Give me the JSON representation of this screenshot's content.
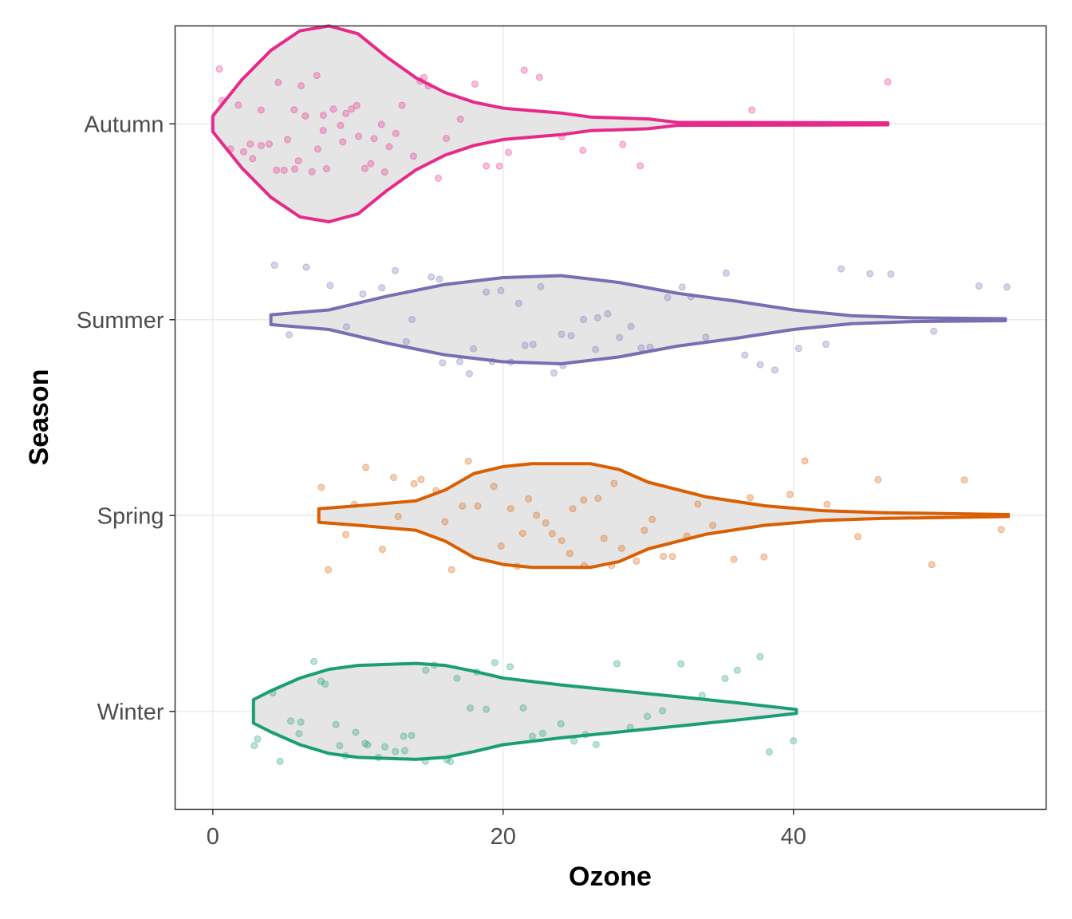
{
  "chart_data": {
    "type": "violin",
    "xlabel": "Ozone",
    "ylabel": "Season",
    "xlim": [
      -2.6,
      57.4
    ],
    "x_ticks": [
      0,
      20,
      40
    ],
    "grid": true,
    "fill_color": "#e5e5e5",
    "categories": [
      "Winter",
      "Spring",
      "Summer",
      "Autumn"
    ],
    "series": [
      {
        "category": "Autumn",
        "color": "#E7298A",
        "min": 0,
        "max": 46.5,
        "density_profile": [
          [
            0,
            0.08
          ],
          [
            2,
            0.45
          ],
          [
            4,
            0.75
          ],
          [
            6,
            0.95
          ],
          [
            8,
            1.0
          ],
          [
            10,
            0.92
          ],
          [
            12,
            0.68
          ],
          [
            14,
            0.47
          ],
          [
            16,
            0.32
          ],
          [
            18,
            0.22
          ],
          [
            20,
            0.16
          ],
          [
            24,
            0.11
          ],
          [
            26,
            0.07
          ],
          [
            30,
            0.05
          ],
          [
            32,
            0.015
          ],
          [
            46.5,
            0.01
          ]
        ],
        "points": [
          0.2,
          0.8,
          1.2,
          1.6,
          2.1,
          2.5,
          2.9,
          3.2,
          3.6,
          3.9,
          4.2,
          4.5,
          4.8,
          5.1,
          5.4,
          5.7,
          6.0,
          6.2,
          6.5,
          6.8,
          7.0,
          7.3,
          7.6,
          7.8,
          8.1,
          8.4,
          8.7,
          9.0,
          9.3,
          9.6,
          9.9,
          10.2,
          10.5,
          10.8,
          11.1,
          11.5,
          11.9,
          12.3,
          12.7,
          13.1,
          13.6,
          14.1,
          14.6,
          15.1,
          15.7,
          16.3,
          17.0,
          17.8,
          18.6,
          19.5,
          20.5,
          21.6,
          22.8,
          24.2,
          25.5,
          28.4,
          29.6,
          36.9,
          46.5
        ]
      },
      {
        "category": "Summer",
        "color": "#7570B3",
        "min": 4,
        "max": 54.6,
        "density_profile": [
          [
            4,
            0.05
          ],
          [
            8,
            0.1
          ],
          [
            12,
            0.24
          ],
          [
            16,
            0.36
          ],
          [
            20,
            0.43
          ],
          [
            24,
            0.45
          ],
          [
            28,
            0.38
          ],
          [
            32,
            0.27
          ],
          [
            36,
            0.19
          ],
          [
            40,
            0.1
          ],
          [
            44,
            0.04
          ],
          [
            48,
            0.02
          ],
          [
            54.6,
            0.01
          ]
        ],
        "points": [
          4.0,
          5.0,
          6.2,
          7.8,
          9.1,
          10.5,
          11.6,
          12.4,
          13.2,
          14.0,
          14.8,
          15.5,
          16.1,
          16.8,
          17.4,
          18.0,
          18.7,
          19.3,
          19.9,
          20.5,
          21.0,
          21.6,
          22.1,
          22.7,
          23.2,
          23.8,
          24.3,
          24.9,
          25.5,
          26.1,
          26.7,
          27.4,
          28.0,
          28.8,
          29.6,
          30.4,
          31.3,
          32.2,
          33.1,
          34.0,
          35.2,
          36.4,
          37.6,
          39.0,
          40.3,
          42.0,
          43.5,
          45.5,
          47.0,
          49.4,
          53.0,
          54.6
        ]
      },
      {
        "category": "Spring",
        "color": "#D95F02",
        "min": 7.3,
        "max": 54.8,
        "density_profile": [
          [
            7.3,
            0.07
          ],
          [
            10,
            0.1
          ],
          [
            14,
            0.15
          ],
          [
            16,
            0.26
          ],
          [
            18,
            0.43
          ],
          [
            20,
            0.5
          ],
          [
            22,
            0.53
          ],
          [
            26,
            0.53
          ],
          [
            28,
            0.47
          ],
          [
            30,
            0.34
          ],
          [
            34,
            0.19
          ],
          [
            38,
            0.1
          ],
          [
            42,
            0.05
          ],
          [
            46,
            0.03
          ],
          [
            54.8,
            0.01
          ]
        ],
        "points": [
          7.5,
          8.0,
          9.0,
          9.8,
          10.7,
          11.4,
          12.2,
          13.0,
          13.8,
          14.6,
          15.3,
          16.0,
          16.7,
          17.3,
          17.9,
          18.5,
          19.1,
          19.7,
          20.3,
          20.8,
          21.3,
          21.8,
          22.3,
          22.8,
          23.3,
          23.8,
          24.3,
          24.8,
          25.3,
          25.8,
          26.3,
          26.8,
          27.3,
          27.8,
          28.4,
          29.0,
          29.6,
          30.3,
          31.0,
          31.8,
          32.7,
          33.6,
          34.6,
          35.7,
          36.9,
          38.2,
          39.5,
          41.0,
          42.6,
          44.2,
          46.0,
          49.4,
          52.0,
          54.6
        ]
      },
      {
        "category": "Winter",
        "color": "#1B9E77",
        "min": 2.8,
        "max": 40.2,
        "density_profile": [
          [
            2.8,
            0.12
          ],
          [
            4,
            0.21
          ],
          [
            6,
            0.34
          ],
          [
            8,
            0.43
          ],
          [
            10,
            0.47
          ],
          [
            14,
            0.49
          ],
          [
            16,
            0.47
          ],
          [
            18,
            0.41
          ],
          [
            20,
            0.34
          ],
          [
            24,
            0.27
          ],
          [
            28,
            0.21
          ],
          [
            32,
            0.15
          ],
          [
            36,
            0.09
          ],
          [
            40.2,
            0.02
          ]
        ],
        "points": [
          2.8,
          3.3,
          4.0,
          4.6,
          5.2,
          5.8,
          6.3,
          6.9,
          7.4,
          7.9,
          8.4,
          8.9,
          9.4,
          9.9,
          10.4,
          10.9,
          11.4,
          11.9,
          12.4,
          12.9,
          13.4,
          13.9,
          14.4,
          14.9,
          15.4,
          15.9,
          16.5,
          17.1,
          17.7,
          18.3,
          19.0,
          19.7,
          20.4,
          21.2,
          22.0,
          22.8,
          23.7,
          24.6,
          25.6,
          26.6,
          27.7,
          28.8,
          30.0,
          31.2,
          32.5,
          33.8,
          35.2,
          36.4,
          37.5,
          38.6,
          40.1
        ]
      }
    ]
  }
}
